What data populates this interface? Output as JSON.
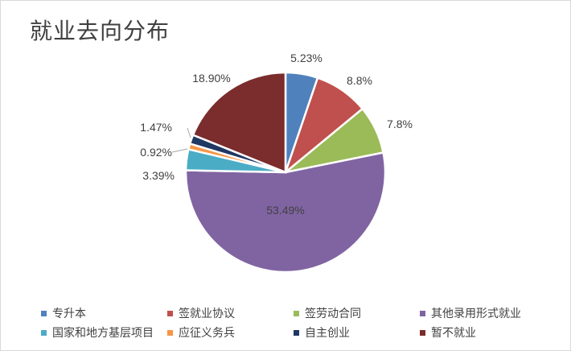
{
  "chart_data": {
    "type": "pie",
    "title": "就业去向分布",
    "categories": [
      "专升本",
      "签就业协议",
      "签劳动合同",
      "其他录用形式就业",
      "国家和地方基层项目",
      "应征义务兵",
      "自主创业",
      "暂不就业"
    ],
    "values": [
      5.23,
      8.8,
      7.8,
      53.49,
      3.39,
      0.92,
      1.47,
      18.9
    ],
    "value_labels": [
      "5.23%",
      "8.8%",
      "7.8%",
      "53.49%",
      "3.39%",
      "0.92%",
      "1.47%",
      "18.90%"
    ],
    "colors": [
      "#4f81bd",
      "#c0504d",
      "#9bbb59",
      "#8064a2",
      "#4bacc6",
      "#f79646",
      "#1f3864",
      "#7b2c2c"
    ],
    "legend_position": "bottom"
  }
}
